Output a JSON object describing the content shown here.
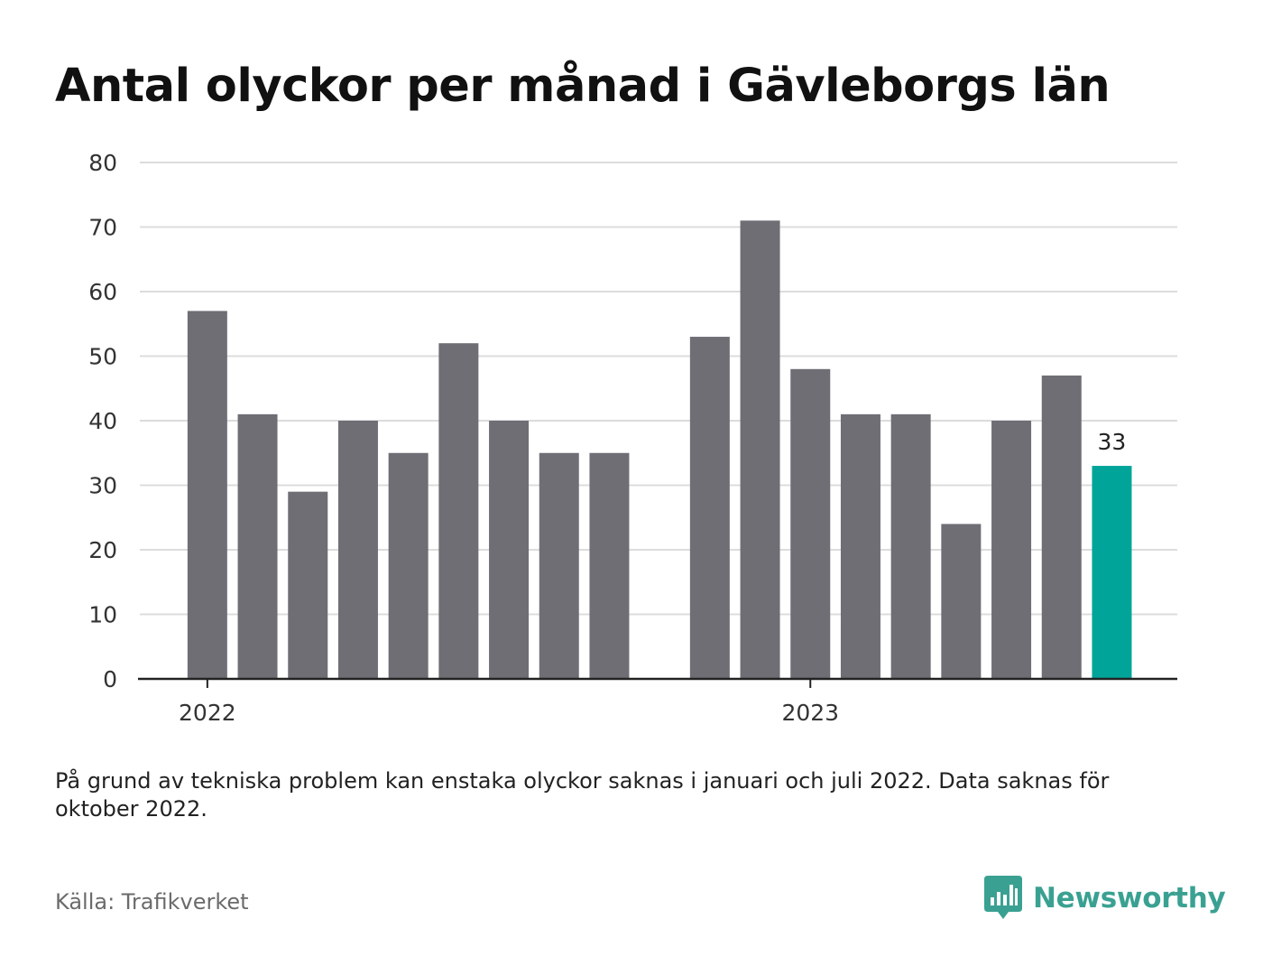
{
  "title": "Antal olyckor per månad i Gävleborgs län",
  "chart_data": {
    "type": "bar",
    "title": "Antal olyckor per månad i Gävleborgs län",
    "categories": [
      "2022-01",
      "2022-02",
      "2022-03",
      "2022-04",
      "2022-05",
      "2022-06",
      "2022-07",
      "2022-08",
      "2022-09",
      "2022-10",
      "2022-11",
      "2022-12",
      "2023-01",
      "2023-02",
      "2023-03",
      "2023-04",
      "2023-05",
      "2023-06",
      "2023-07",
      "2023-08",
      "2023-09"
    ],
    "values": [
      57,
      41,
      29,
      40,
      35,
      52,
      40,
      35,
      35,
      null,
      53,
      71,
      48,
      41,
      41,
      24,
      40,
      47,
      33,
      null,
      null
    ],
    "x_tick_labels": [
      "2022",
      "2023"
    ],
    "y_ticks": [
      0,
      10,
      20,
      30,
      40,
      50,
      60,
      70,
      80
    ],
    "ylim": [
      0,
      80
    ],
    "highlight_index": 18,
    "highlight_label": "33",
    "grid": true,
    "legend": "none",
    "colors": {
      "bar": "#6f6e75",
      "highlight": "#00a499",
      "grid": "#dcdcdc",
      "axis": "#222222"
    }
  },
  "note": "På grund av tekniska problem kan enstaka olyckor saknas i januari och juli 2022. Data saknas för oktober 2022.",
  "source": "Källa: Trafikverket",
  "logo": {
    "text": "Newsworthy",
    "color": "#3aa192"
  }
}
